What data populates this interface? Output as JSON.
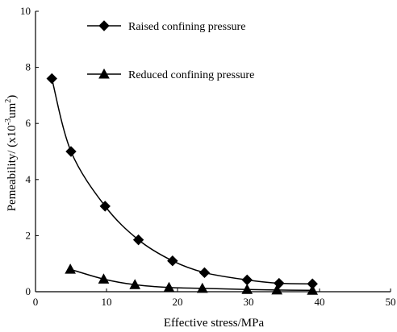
{
  "chart_data": {
    "type": "line",
    "xlabel": "Effective stress/MPa",
    "ylabel_parts": {
      "before_exp": "Pemeability/ (x10",
      "exp1": "-3",
      "middle": "um",
      "exp2": "2",
      "after": ")"
    },
    "xlim": [
      0,
      50
    ],
    "ylim": [
      0,
      10
    ],
    "x_ticks": [
      0,
      10,
      20,
      30,
      40,
      50
    ],
    "y_ticks": [
      0,
      2,
      4,
      6,
      8,
      10
    ],
    "x_tick_labels": [
      "0",
      "10",
      "20",
      "30",
      "40",
      "50"
    ],
    "y_tick_labels": [
      "0",
      "2",
      "4",
      "6",
      "8",
      "10"
    ],
    "grid": false,
    "legend_position": "top-right",
    "series": [
      {
        "name": "Raised confining pressure",
        "marker": "diamond",
        "color": "#000000",
        "x": [
          2.3,
          5.0,
          9.8,
          14.5,
          19.3,
          23.8,
          29.8,
          34.3,
          39.0
        ],
        "y": [
          7.6,
          5.0,
          3.05,
          1.85,
          1.1,
          0.68,
          0.42,
          0.3,
          0.28
        ]
      },
      {
        "name": "Reduced confining pressure",
        "marker": "triangle",
        "color": "#000000",
        "x": [
          4.9,
          9.6,
          14.0,
          18.8,
          23.5,
          29.8,
          34.0,
          39.0
        ],
        "y": [
          0.8,
          0.45,
          0.25,
          0.15,
          0.12,
          0.08,
          0.06,
          0.05
        ]
      }
    ]
  }
}
